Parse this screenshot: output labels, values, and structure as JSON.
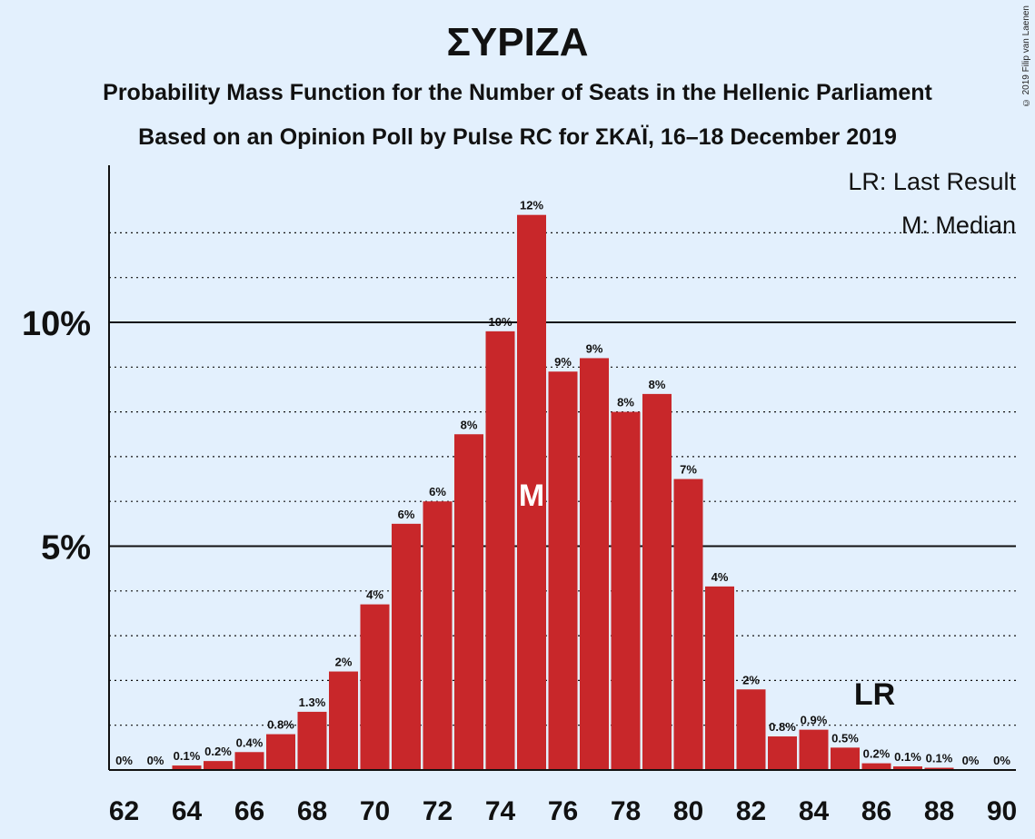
{
  "title": "ΣΥΡΙΖΑ",
  "subtitle1": "Probability Mass Function for the Number of Seats in the Hellenic Parliament",
  "subtitle2": "Based on an Opinion Poll by Pulse RC for ΣΚΑΪ, 16–18 December 2019",
  "copyright": "© 2019 Filip van Laenen",
  "legend": {
    "lr": "LR: Last Result",
    "m": "M: Median"
  },
  "colors": {
    "background": "#e3f0fd",
    "bar": "#c8272a",
    "text": "#111111"
  },
  "chart_data": {
    "type": "bar",
    "categories": [
      62,
      63,
      64,
      65,
      66,
      67,
      68,
      69,
      70,
      71,
      72,
      73,
      74,
      75,
      76,
      77,
      78,
      79,
      80,
      81,
      82,
      83,
      84,
      85,
      86,
      87,
      88,
      89,
      90
    ],
    "values": [
      0,
      0,
      0.1,
      0.2,
      0.4,
      0.8,
      1.3,
      2.2,
      3.7,
      5.5,
      6.0,
      7.5,
      9.8,
      12.4,
      8.9,
      9.2,
      8.0,
      8.4,
      6.5,
      4.1,
      1.8,
      0.75,
      0.9,
      0.5,
      0.15,
      0.08,
      0.05,
      0,
      0
    ],
    "data_labels": [
      "0%",
      "0%",
      "0.1%",
      "0.2%",
      "0.4%",
      "0.8%",
      "1.3%",
      "2%",
      "4%",
      "6%",
      "6%",
      "8%",
      "10%",
      "12%",
      "9%",
      "9%",
      "8%",
      "8%",
      "7%",
      "4%",
      "2%",
      "0.8%",
      "0.9%",
      "0.5%",
      "0.2%",
      "0.1%",
      "0.1%",
      "0%",
      "0%"
    ],
    "x_tick_labels": [
      "62",
      "64",
      "66",
      "68",
      "70",
      "72",
      "74",
      "76",
      "78",
      "80",
      "82",
      "84",
      "86",
      "88",
      "90"
    ],
    "y_tick_labels": [
      "5%",
      "10%"
    ],
    "ylim": [
      0,
      13.5
    ],
    "median": 75,
    "median_label": "M",
    "last_result": 86,
    "last_result_label": "LR",
    "grid": "dotted every 1%, solid at 5% and 10%"
  }
}
